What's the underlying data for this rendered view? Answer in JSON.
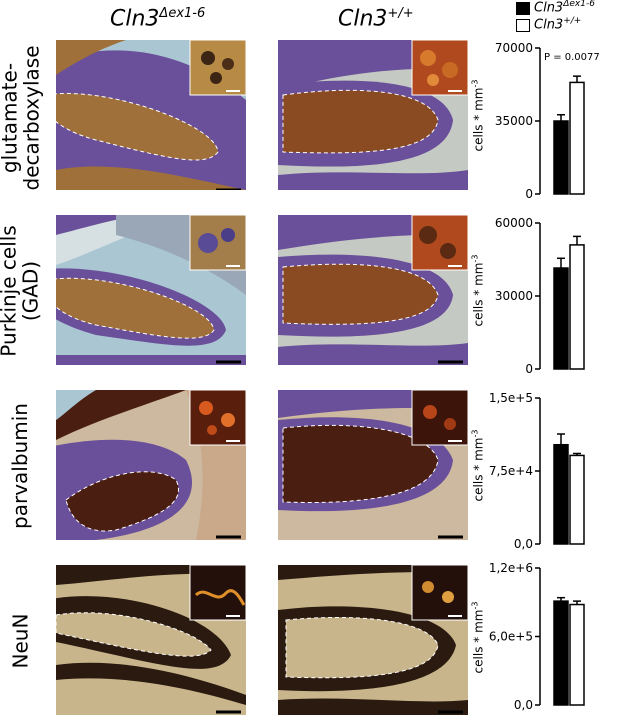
{
  "columns": {
    "left_base": "Cln3",
    "left_sup": "Δex1-6",
    "right_base": "Cln3",
    "right_sup": "+/+"
  },
  "legend": [
    {
      "base": "Cln3",
      "sup": "Δex1-6",
      "fill": "#000000"
    },
    {
      "base": "Cln3",
      "sup": "+/+",
      "fill": "#ffffff"
    }
  ],
  "rows": [
    {
      "label_lines": [
        "glutamate-",
        "decarboxylase"
      ]
    },
    {
      "label_lines": [
        "Purkinje cells",
        "(GAD)"
      ]
    },
    {
      "label_lines": [
        "parvalbumin"
      ]
    },
    {
      "label_lines": [
        "NeuN"
      ]
    }
  ],
  "colors": {
    "bar_mutant": "#000000",
    "bar_wildtype": "#ffffff",
    "gad_stain": "#a0703a",
    "nissl_purple": "#6a4f9a",
    "white_matter": "#a9c6d2",
    "dark_brown": "#4a1e10"
  },
  "chart_data": [
    {
      "type": "bar",
      "categories": [
        "Cln3Δex1-6",
        "Cln3+/+"
      ],
      "values": [
        35000,
        53500
      ],
      "errors": [
        3000,
        3000
      ],
      "ylim": [
        0,
        70000
      ],
      "ytick_labels": [
        "0",
        "35000",
        "70000"
      ],
      "ylabel": "cells * mm",
      "ylabel_sup": "-3",
      "annotation": "P = 0.0077"
    },
    {
      "type": "bar",
      "categories": [
        "Cln3Δex1-6",
        "Cln3+/+"
      ],
      "values": [
        41500,
        51000
      ],
      "errors": [
        4000,
        3500
      ],
      "ylim": [
        0,
        60000
      ],
      "ytick_labels": [
        "0",
        "30000",
        "60000"
      ],
      "ylabel": "cells * mm",
      "ylabel_sup": "-3",
      "annotation": ""
    },
    {
      "type": "bar",
      "categories": [
        "Cln3Δex1-6",
        "Cln3+/+"
      ],
      "values": [
        102000,
        91000
      ],
      "errors": [
        11000,
        2000
      ],
      "ylim": [
        0,
        150000
      ],
      "ytick_labels": [
        "0,0",
        "7,5e+4",
        "1,5e+5"
      ],
      "ylabel": "cells * mm",
      "ylabel_sup": "-3",
      "annotation": ""
    },
    {
      "type": "bar",
      "categories": [
        "Cln3Δex1-6",
        "Cln3+/+"
      ],
      "values": [
        910000,
        880000
      ],
      "errors": [
        30000,
        30000
      ],
      "ylim": [
        0,
        1200000
      ],
      "ytick_labels": [
        "0,0",
        "6,0e+5",
        "1,2e+6"
      ],
      "ylabel": "cells * mm",
      "ylabel_sup": "-3",
      "annotation": ""
    }
  ]
}
